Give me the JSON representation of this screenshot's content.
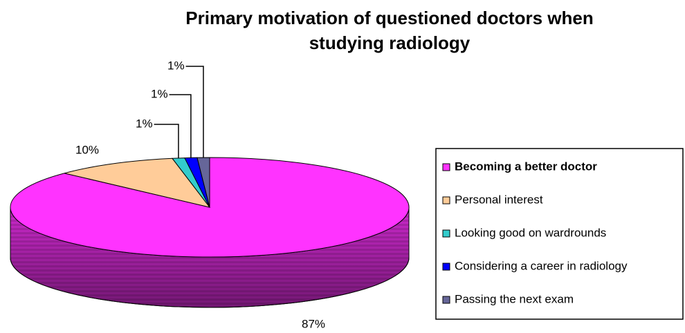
{
  "chart_data": {
    "type": "pie3d",
    "title": "Primary motivation of questioned doctors when studying radiology",
    "categories": [
      "Becoming a better doctor",
      "Personal interest",
      "Looking good on wardrounds",
      "Considering a career in radiology",
      "Passing the next exam"
    ],
    "values": [
      87,
      10,
      1,
      1,
      1
    ],
    "value_labels": [
      "87%",
      "10%",
      "1%",
      "1%",
      "1%"
    ],
    "colors": [
      "#ff33ff",
      "#ffcc99",
      "#33cccc",
      "#0000ff",
      "#666699"
    ],
    "legend": "right"
  }
}
